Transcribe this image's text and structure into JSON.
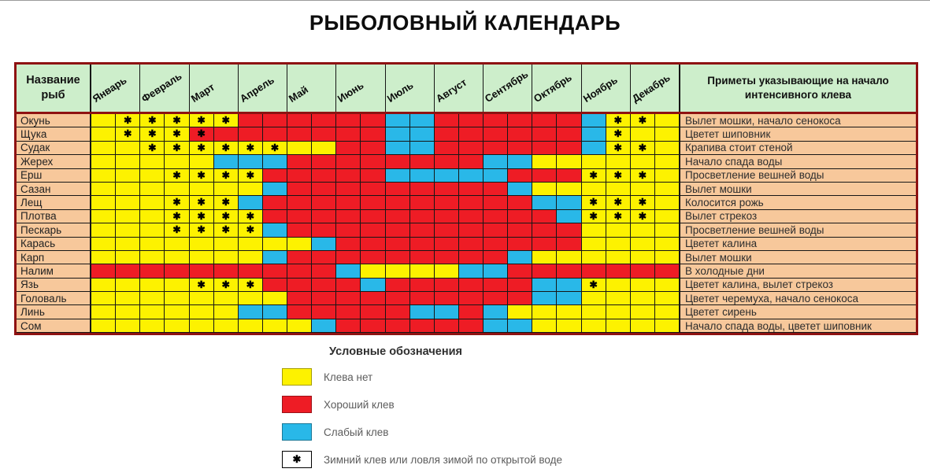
{
  "title": "РЫБОЛОВНЫЙ КАЛЕНДАРЬ",
  "table": {
    "name_header": "Название рыб",
    "notes_header": "Приметы указывающие на начало интенсивного клева"
  },
  "chart_data": {
    "type": "heatmap",
    "months": [
      "Январь",
      "Февраль",
      "Март",
      "Апрель",
      "Май",
      "Июнь",
      "Июль",
      "Август",
      "Сентябрь",
      "Октябрь",
      "Ноябрь",
      "Декабрь"
    ],
    "half_months_per_month": 2,
    "cell_encoding": {
      "y": "Клева нет (желтый)",
      "r": "Хороший клев (красный)",
      "b": "Слабый клев (голубой)",
      "uppercase_letter": "та же окраска + звездочка: зимний клев или ловля зимой по открытой воде"
    },
    "rows": [
      {
        "fish": "Окунь",
        "cells": "yYYYYYrrrrrrbbrrrrrrbYYy",
        "note": "Вылет мошки, начало сенокоса"
      },
      {
        "fish": "Щука",
        "cells": "yYYYRrrrrrrrbbrrrrrrbYyy",
        "note": "Цветет шиповник"
      },
      {
        "fish": "Судак",
        "cells": "yyYYYYYYyyrrbbrrrrrrbYYy",
        "note": "Крапива стоит стеной"
      },
      {
        "fish": "Жерех",
        "cells": "yyyyybbbrrrrrrrrbbyyyyyy",
        "note": "Начало спада воды"
      },
      {
        "fish": "Ерш",
        "cells": "yyyYYYYrrrrrbbbbbrrrYYYy",
        "note": "Просветление вешней воды"
      },
      {
        "fish": "Сазан",
        "cells": "yyyyyyybrrrrrrrrrbyyyyyy",
        "note": "Вылет мошки"
      },
      {
        "fish": "Лещ",
        "cells": "yyyYYYbrrrrrrrrrrrbbYYYy",
        "note": "Колосится рожь"
      },
      {
        "fish": "Плотва",
        "cells": "yyyYYYYrrrrrrrrrrrrbYYYy",
        "note": "Вылет стрекоз"
      },
      {
        "fish": "Пескарь",
        "cells": "yyyYYYYbrrrrrrrrrrrryyyy",
        "note": "Просветление вешней воды"
      },
      {
        "fish": "Карась",
        "cells": "yyyyyyyyybrrrrrrrrrryyyy",
        "note": "Цветет калина"
      },
      {
        "fish": "Карп",
        "cells": "yyyyyyybrrrrrrrrrbyyyyyy",
        "note": "Вылет мошки"
      },
      {
        "fish": "Налим",
        "cells": "rrrrrrrrrrbyyyybbrrrrrrr",
        "note": "В холодные дни"
      },
      {
        "fish": "Язь",
        "cells": "yyyyYYYrrrrbrrrrrrbbYyyy",
        "note": "Цветет калина, вылет стрекоз"
      },
      {
        "fish": "Головаль",
        "cells": "yyyyyyyyrrrrrrrrrrbbyyyy",
        "note": "Цветет черемуха, начало сенокоса"
      },
      {
        "fish": "Линь",
        "cells": "yyyyyybbrrrrrbbrbyyyyyyy",
        "note": "Цветет сирень"
      },
      {
        "fish": "Сом",
        "cells": "yyyyyyyyybrrrrrrbbyyyyyy",
        "note": "Начало спада воды, цветет шиповник"
      }
    ]
  },
  "legend": {
    "title": "Условные обозначения",
    "items": [
      {
        "swatch": "yellow",
        "label": "Клева нет"
      },
      {
        "swatch": "red",
        "label": "Хороший клев"
      },
      {
        "swatch": "blue",
        "label": "Слабый клев"
      },
      {
        "swatch": "asterisk",
        "label": "Зимний клев или ловля зимой по открытой воде"
      }
    ]
  },
  "colors": {
    "yellow": "#fdf200",
    "red": "#ee1c25",
    "blue": "#29b8e8",
    "header_green": "#cdeecb",
    "fish_peach": "#f7c89b",
    "frame_dark_red": "#8e1212"
  },
  "asterisk_glyph": "✱"
}
